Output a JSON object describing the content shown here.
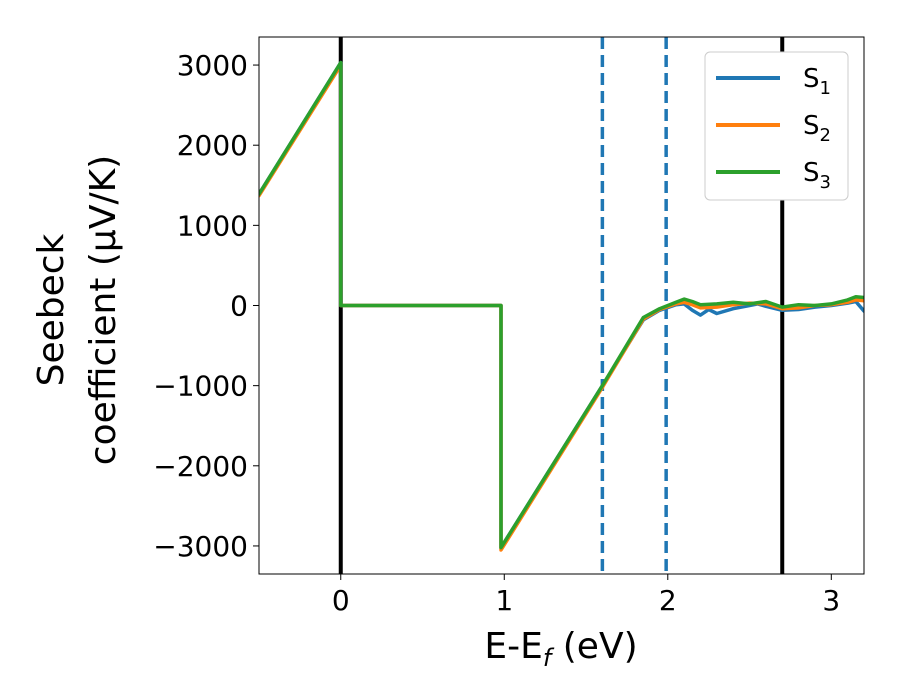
{
  "chart_data": {
    "type": "line",
    "xlabel_main": "E-E",
    "xlabel_sub": "f",
    "xlabel_unit": " (eV)",
    "ylabel_line1": "Seebeck",
    "ylabel_line2": "coefficient  (μV/K)",
    "xlim": [
      -0.5,
      3.2
    ],
    "ylim": [
      -3350,
      3350
    ],
    "xticks": [
      0,
      1,
      2,
      3
    ],
    "xtick_labels": [
      "0",
      "1",
      "2",
      "3"
    ],
    "yticks": [
      3000,
      2000,
      1000,
      0,
      -1000,
      -2000,
      -3000
    ],
    "ytick_labels": [
      "3000",
      "2000",
      "1000",
      "0",
      "−1000",
      "−2000",
      "−3000"
    ],
    "legend_position": "top-right",
    "vlines": [
      {
        "x": 0.0,
        "style": "solid",
        "color": "#000000"
      },
      {
        "x": 2.7,
        "style": "solid",
        "color": "#000000"
      },
      {
        "x": 1.6,
        "style": "dashed",
        "color": "#1f77b4"
      },
      {
        "x": 1.99,
        "style": "dashed",
        "color": "#1f77b4"
      }
    ],
    "series": [
      {
        "name": "S",
        "sub": "1",
        "color": "#1f77b4",
        "points": [
          [
            -0.5,
            1390
          ],
          [
            0.0,
            3030
          ],
          [
            0.0,
            0
          ],
          [
            0.98,
            0
          ],
          [
            0.98,
            -3020
          ],
          [
            1.6,
            -1000
          ],
          [
            1.85,
            -180
          ],
          [
            1.95,
            -60
          ],
          [
            2.05,
            10
          ],
          [
            2.1,
            20
          ],
          [
            2.15,
            -60
          ],
          [
            2.2,
            -120
          ],
          [
            2.25,
            -50
          ],
          [
            2.3,
            -100
          ],
          [
            2.4,
            -40
          ],
          [
            2.5,
            0
          ],
          [
            2.55,
            20
          ],
          [
            2.6,
            -10
          ],
          [
            2.7,
            -60
          ],
          [
            2.8,
            -50
          ],
          [
            2.9,
            -20
          ],
          [
            3.0,
            0
          ],
          [
            3.1,
            30
          ],
          [
            3.15,
            50
          ],
          [
            3.2,
            -70
          ]
        ]
      },
      {
        "name": "S",
        "sub": "2",
        "color": "#ff7f0e",
        "points": [
          [
            -0.5,
            1370
          ],
          [
            0.0,
            3000
          ],
          [
            0.0,
            0
          ],
          [
            0.98,
            0
          ],
          [
            0.98,
            -3050
          ],
          [
            1.6,
            -1020
          ],
          [
            1.85,
            -170
          ],
          [
            1.95,
            -50
          ],
          [
            2.05,
            20
          ],
          [
            2.1,
            40
          ],
          [
            2.15,
            10
          ],
          [
            2.2,
            -30
          ],
          [
            2.3,
            -20
          ],
          [
            2.4,
            10
          ],
          [
            2.5,
            30
          ],
          [
            2.6,
            20
          ],
          [
            2.7,
            -40
          ],
          [
            2.8,
            -30
          ],
          [
            2.9,
            0
          ],
          [
            3.0,
            10
          ],
          [
            3.1,
            40
          ],
          [
            3.15,
            70
          ],
          [
            3.2,
            60
          ]
        ]
      },
      {
        "name": "S",
        "sub": "3",
        "color": "#2ca02c",
        "points": [
          [
            -0.5,
            1390
          ],
          [
            0.0,
            3030
          ],
          [
            0.0,
            0
          ],
          [
            0.98,
            0
          ],
          [
            0.98,
            -3020
          ],
          [
            1.6,
            -1000
          ],
          [
            1.85,
            -150
          ],
          [
            1.95,
            -40
          ],
          [
            2.05,
            40
          ],
          [
            2.1,
            80
          ],
          [
            2.15,
            50
          ],
          [
            2.2,
            10
          ],
          [
            2.3,
            20
          ],
          [
            2.4,
            40
          ],
          [
            2.5,
            20
          ],
          [
            2.6,
            50
          ],
          [
            2.7,
            -20
          ],
          [
            2.8,
            10
          ],
          [
            2.9,
            0
          ],
          [
            3.0,
            20
          ],
          [
            3.1,
            70
          ],
          [
            3.15,
            110
          ],
          [
            3.2,
            100
          ]
        ]
      }
    ]
  }
}
